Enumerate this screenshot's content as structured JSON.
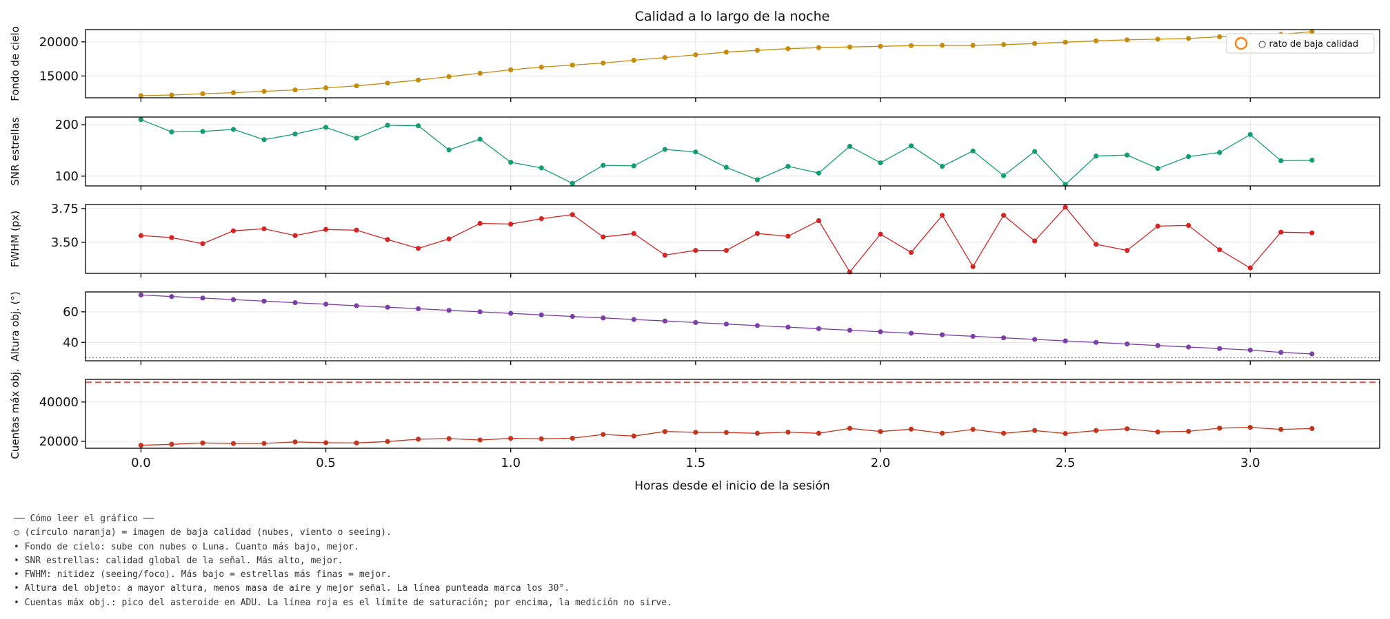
{
  "chart_data": {
    "type": "line",
    "title": "Calidad a lo largo de la noche",
    "xlabel": "Horas desde el inicio de la sesión",
    "xlim": [
      -0.15,
      3.35
    ],
    "xticks": [
      0.0,
      0.5,
      1.0,
      1.5,
      2.0,
      2.5,
      3.0
    ],
    "xtick_labels": [
      "0.0",
      "0.5",
      "1.0",
      "1.5",
      "2.0",
      "2.5",
      "3.0"
    ],
    "x": [
      0.0,
      0.083,
      0.167,
      0.25,
      0.333,
      0.417,
      0.5,
      0.583,
      0.667,
      0.75,
      0.833,
      0.917,
      1.0,
      1.083,
      1.167,
      1.25,
      1.333,
      1.417,
      1.5,
      1.583,
      1.667,
      1.75,
      1.833,
      1.917,
      2.0,
      2.083,
      2.167,
      2.25,
      2.333,
      2.417,
      2.5,
      2.583,
      2.667,
      2.75,
      2.833,
      2.917,
      3.0,
      3.083,
      3.167
    ],
    "grid": true,
    "legend": {
      "position": "top-right",
      "label": "○ rato de baja calidad",
      "marker_color": "#ff7f0e"
    },
    "panels": [
      {
        "ylabel": "Fondo de cielo",
        "color": "#c58b0c",
        "ylim": [
          11800,
          21800
        ],
        "yticks": [
          15000,
          20000
        ],
        "ytick_labels": [
          "15000",
          "20000"
        ],
        "values": [
          12100,
          12200,
          12400,
          12550,
          12750,
          12950,
          13250,
          13550,
          13950,
          14400,
          14900,
          15400,
          15900,
          16300,
          16600,
          16900,
          17300,
          17700,
          18100,
          18500,
          18750,
          19000,
          19150,
          19250,
          19350,
          19450,
          19500,
          19500,
          19600,
          19750,
          19950,
          20150,
          20300,
          20400,
          20500,
          20750,
          20900,
          21100,
          21500
        ]
      },
      {
        "ylabel": "SNR estrellas",
        "color": "#139d70",
        "ylim": [
          81,
          215
        ],
        "yticks": [
          100,
          200
        ],
        "ytick_labels": [
          "100",
          "200"
        ],
        "values": [
          210,
          186,
          187,
          191,
          171,
          182,
          195,
          174,
          199,
          198,
          151,
          172,
          127,
          116,
          86,
          121,
          120,
          152,
          147,
          117,
          93,
          119,
          106,
          158,
          126,
          159,
          119,
          149,
          101,
          148,
          84,
          139,
          141,
          115,
          138,
          146,
          181,
          130,
          131
        ]
      },
      {
        "ylabel": "FWHM (px)",
        "color": "#d42424",
        "ylim": [
          3.27,
          3.78
        ],
        "yticks": [
          3.5,
          3.75
        ],
        "ytick_labels": [
          "3.50",
          "3.75"
        ],
        "values": [
          3.55,
          3.535,
          3.49,
          3.585,
          3.6,
          3.55,
          3.595,
          3.59,
          3.52,
          3.455,
          3.525,
          3.64,
          3.635,
          3.675,
          3.705,
          3.54,
          3.565,
          3.405,
          3.44,
          3.44,
          3.565,
          3.545,
          3.66,
          3.28,
          3.56,
          3.425,
          3.7,
          3.32,
          3.7,
          3.51,
          3.76,
          3.485,
          3.44,
          3.62,
          3.625,
          3.445,
          3.31,
          3.575,
          3.57
        ]
      },
      {
        "ylabel": "Altura obj. (°)",
        "color": "#7b3fa6",
        "ylim": [
          28,
          73
        ],
        "yticks": [
          40,
          60
        ],
        "ytick_labels": [
          "40",
          "60"
        ],
        "reference_line": {
          "value": 30,
          "style": "dotted",
          "color": "#888888"
        },
        "values": [
          71,
          70,
          69,
          68,
          67,
          66,
          65,
          64,
          63,
          62,
          61,
          60,
          59,
          58,
          57,
          56,
          55,
          54,
          53,
          52,
          51,
          50,
          49,
          48,
          47,
          46,
          45,
          44,
          43,
          42,
          41,
          40,
          39,
          38,
          37,
          36,
          35,
          33.5,
          32.5
        ]
      },
      {
        "ylabel": "Cuentas máx obj.",
        "color": "#c2351f",
        "ylim": [
          16500,
          51500
        ],
        "yticks": [
          20000,
          40000
        ],
        "ytick_labels": [
          "20000",
          "40000"
        ],
        "reference_line": {
          "value": 50000,
          "style": "dashed",
          "color": "#d9534f"
        },
        "values": [
          18000,
          18500,
          19200,
          18900,
          18950,
          19700,
          19300,
          19200,
          19900,
          21100,
          21400,
          20700,
          21500,
          21300,
          21600,
          23500,
          22700,
          25000,
          24600,
          24500,
          24100,
          24700,
          24100,
          26600,
          25000,
          26200,
          24100,
          26100,
          24100,
          25500,
          24000,
          25500,
          26400,
          24800,
          25100,
          26700,
          27100,
          26100,
          26500
        ]
      }
    ]
  },
  "notes": [
    "── Cómo leer el gráfico ──",
    "○ (círculo naranja) = imagen de baja calidad (nubes, viento o seeing).",
    "• Fondo de cielo: sube con nubes o Luna. Cuanto más bajo, mejor.",
    "• SNR estrellas: calidad global de la señal. Más alto, mejor.",
    "• FWHM: nitidez (seeing/foco). Más bajo = estrellas más finas = mejor.",
    "• Altura del objeto: a mayor altura, menos masa de aire y mejor señal. La línea punteada marca los 30°.",
    "• Cuentas máx obj.: pico del asteroide en ADU. La línea roja es el límite de saturación; por encima, la medición no sirve."
  ]
}
